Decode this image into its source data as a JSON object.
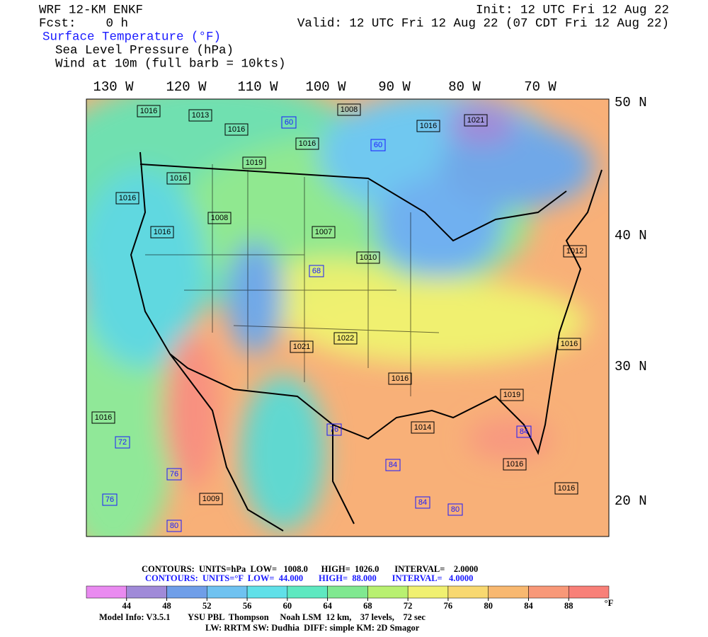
{
  "header": {
    "model": "WRF 12-KM ENKF",
    "forecast": "Fcst:    0 h",
    "init": "Init: 12 UTC Fri 12 Aug 22",
    "valid": "Valid: 12 UTC Fri 12 Aug 22 (07 CDT Fri 12 Aug 22)",
    "fields": [
      "Surface Temperature (°F)",
      "Sea Level Pressure (hPa)",
      "Wind at 10m (full barb = 10kts)"
    ]
  },
  "map": {
    "longitude_labels": [
      "130 W",
      "120 W",
      "110 W",
      "100 W",
      "90 W",
      "80 W",
      "70 W"
    ],
    "latitude_labels": [
      "50 N",
      "40 N",
      "30 N",
      "20 N"
    ],
    "pressure_labels": [
      "1016",
      "1013",
      "1008",
      "1016",
      "1016",
      "1021",
      "1016",
      "1019",
      "1016",
      "1016",
      "1008",
      "1016",
      "1007",
      "1010",
      "1012",
      "1016",
      "1022",
      "1021",
      "1016",
      "1019",
      "1016",
      "1014",
      "1016",
      "1009",
      "1016"
    ],
    "temperature_labels": [
      "60",
      "60",
      "72",
      "76",
      "84",
      "84",
      "80",
      "76",
      "80",
      "76",
      "68",
      "84"
    ]
  },
  "footer": {
    "pressure_contours": "CONTOURS:  UNITS=hPa  LOW=   1008.0      HIGH=  1026.0       INTERVAL=    2.0000",
    "temperature_contours": "CONTOURS:  UNITS=°F  LOW=  44.000       HIGH=  88.000       INTERVAL=   4.0000",
    "colorbar": {
      "ticks": [
        44,
        48,
        52,
        56,
        60,
        64,
        68,
        72,
        76,
        80,
        84,
        88
      ],
      "unit": "°F",
      "colors": [
        "#e98af0",
        "#a08ad8",
        "#6f9ee8",
        "#6fc2f0",
        "#60e0e8",
        "#5ee8c0",
        "#80e890",
        "#b8f070",
        "#f0f070",
        "#f8d870",
        "#f8b870",
        "#f89878",
        "#f88078"
      ]
    },
    "model_info": "Model Info: V3.5.1        YSU PBL  Thompson     Noah LSM  12 km,    37 levels,    72 sec",
    "physics": "LW: RRTM SW: Dudhia  DIFF: simple KM: 2D Smagor"
  }
}
